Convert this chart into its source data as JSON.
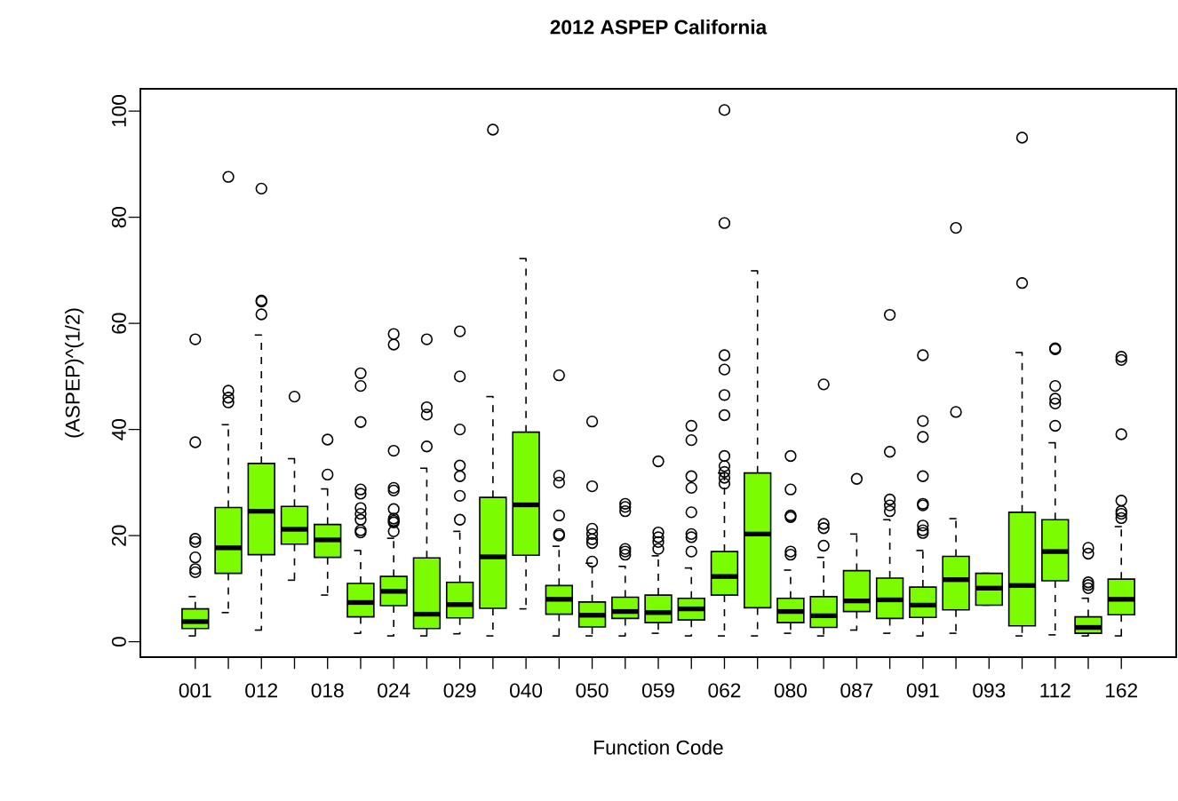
{
  "chart_data": {
    "type": "box",
    "title": "2012 ASPEP California",
    "xlabel": "Function Code",
    "ylabel": "(ASPEP)^(1/2)",
    "color": "#7cfc00",
    "grid": false,
    "categories": [
      "001",
      null,
      "012",
      null,
      "018",
      null,
      "024",
      null,
      "029",
      null,
      "040",
      null,
      "050",
      null,
      "059",
      null,
      "062",
      null,
      "080",
      null,
      "087",
      null,
      "091",
      null,
      "093",
      null,
      "112",
      null,
      "162"
    ],
    "ylim": [
      -2.9,
      104.2
    ],
    "yticks": [
      0,
      20,
      40,
      60,
      80,
      100
    ],
    "boxes": [
      {
        "low": 1.1,
        "q1": 2.5,
        "median": 3.8,
        "q3": 6.2,
        "high": 8.5,
        "outliers": [
          13.1,
          13.7,
          15.9,
          18.8,
          19.4,
          37.6,
          57.0
        ]
      },
      {
        "low": 5.5,
        "q1": 12.9,
        "median": 17.7,
        "q3": 25.3,
        "high": 40.9,
        "outliers": [
          45.1,
          46.0,
          47.3,
          87.6
        ]
      },
      {
        "low": 2.2,
        "q1": 16.4,
        "median": 24.6,
        "q3": 33.6,
        "high": 57.8,
        "outliers": [
          61.7,
          64.1,
          64.3,
          85.4
        ]
      },
      {
        "low": 11.6,
        "q1": 18.4,
        "median": 21.2,
        "q3": 25.5,
        "high": 34.5,
        "outliers": [
          46.2
        ]
      },
      {
        "low": 8.8,
        "q1": 15.9,
        "median": 19.2,
        "q3": 22.1,
        "high": 28.8,
        "outliers": [
          31.5,
          38.1
        ]
      },
      {
        "low": 1.6,
        "q1": 4.7,
        "median": 7.4,
        "q3": 11.0,
        "high": 17.2,
        "outliers": [
          20.6,
          21.0,
          23.0,
          24.1,
          25.2,
          27.9,
          28.7,
          41.4,
          48.2,
          50.6
        ]
      },
      {
        "low": 1.1,
        "q1": 6.8,
        "median": 9.5,
        "q3": 12.3,
        "high": 19.5,
        "outliers": [
          20.8,
          22.5,
          22.8,
          23.2,
          25.0,
          28.5,
          29.0,
          36.0,
          56.0,
          58.0
        ]
      },
      {
        "low": 1.1,
        "q1": 2.5,
        "median": 5.2,
        "q3": 15.8,
        "high": 32.7,
        "outliers": [
          36.8,
          42.8,
          44.2,
          57.0
        ]
      },
      {
        "low": 1.5,
        "q1": 4.5,
        "median": 7.0,
        "q3": 11.2,
        "high": 20.8,
        "outliers": [
          23.0,
          27.5,
          31.2,
          33.2,
          40.0,
          50.0,
          58.5
        ]
      },
      {
        "low": 1.1,
        "q1": 6.3,
        "median": 16.0,
        "q3": 27.2,
        "high": 46.2,
        "outliers": [
          96.5
        ]
      },
      {
        "low": 6.2,
        "q1": 16.3,
        "median": 25.8,
        "q3": 39.5,
        "high": 72.2
      },
      {
        "low": 1.1,
        "q1": 5.2,
        "median": 8.0,
        "q3": 10.6,
        "high": 18.0,
        "outliers": [
          20.0,
          20.3,
          23.8,
          30.0,
          31.3,
          50.2
        ]
      },
      {
        "low": 1.1,
        "q1": 2.8,
        "median": 5.0,
        "q3": 7.5,
        "high": 14.8,
        "outliers": [
          15.1,
          18.6,
          19.3,
          20.3,
          21.3,
          29.3,
          41.5
        ]
      },
      {
        "low": 1.1,
        "q1": 4.4,
        "median": 5.7,
        "q3": 8.4,
        "high": 14.2,
        "outliers": [
          16.4,
          17.0,
          17.5,
          24.6,
          25.4,
          26.0
        ]
      },
      {
        "low": 1.6,
        "q1": 3.6,
        "median": 5.5,
        "q3": 8.8,
        "high": 16.2,
        "outliers": [
          17.5,
          18.8,
          19.7,
          20.6,
          34.0
        ]
      },
      {
        "low": 1.1,
        "q1": 4.1,
        "median": 6.2,
        "q3": 8.2,
        "high": 13.9,
        "outliers": [
          17.0,
          19.7,
          20.3,
          24.4,
          29.0,
          31.2,
          38.0,
          40.7
        ]
      },
      {
        "low": 1.1,
        "q1": 8.8,
        "median": 12.3,
        "q3": 17.0,
        "high": 31.8,
        "outliers": [
          29.8,
          30.9,
          32.0,
          33.1,
          35.0,
          42.7,
          46.5,
          51.3,
          54.0,
          78.9,
          100.2
        ]
      },
      {
        "low": 1.1,
        "q1": 6.4,
        "median": 20.3,
        "q3": 31.8,
        "high": 69.9
      },
      {
        "low": 1.6,
        "q1": 3.6,
        "median": 5.7,
        "q3": 8.2,
        "high": 13.5,
        "outliers": [
          16.4,
          17.0,
          23.5,
          23.8,
          28.7,
          35.0
        ]
      },
      {
        "low": 1.1,
        "q1": 2.7,
        "median": 4.9,
        "q3": 8.5,
        "high": 15.9,
        "outliers": [
          18.1,
          21.4,
          22.2,
          48.5
        ]
      },
      {
        "low": 2.2,
        "q1": 5.7,
        "median": 7.7,
        "q3": 13.4,
        "high": 20.3,
        "outliers": [
          30.7
        ]
      },
      {
        "low": 1.6,
        "q1": 4.4,
        "median": 7.9,
        "q3": 12.0,
        "high": 23.0,
        "outliers": [
          24.6,
          25.7,
          26.8,
          35.8,
          61.6
        ]
      },
      {
        "low": 1.1,
        "q1": 4.6,
        "median": 6.9,
        "q3": 10.3,
        "high": 17.2,
        "outliers": [
          20.5,
          21.0,
          21.9,
          25.7,
          26.0,
          31.2,
          38.6,
          41.6,
          54.0
        ]
      },
      {
        "low": 1.6,
        "q1": 6.0,
        "median": 11.7,
        "q3": 16.1,
        "high": 23.2,
        "outliers": [
          43.3,
          78.0
        ]
      },
      {
        "low": 6.9,
        "q1": 6.9,
        "median": 10.1,
        "q3": 12.9,
        "high": 12.9
      },
      {
        "low": 1.1,
        "q1": 3.0,
        "median": 10.6,
        "q3": 24.4,
        "high": 54.5,
        "outliers": [
          67.6,
          95.0
        ]
      },
      {
        "low": 1.3,
        "q1": 11.5,
        "median": 17.0,
        "q3": 23.0,
        "high": 37.5,
        "outliers": [
          40.7,
          44.9,
          45.8,
          48.2,
          55.1,
          55.3
        ]
      },
      {
        "low": 1.1,
        "q1": 1.6,
        "median": 2.7,
        "q3": 4.7,
        "high": 8.2,
        "outliers": [
          10.1,
          10.7,
          11.2,
          16.6,
          17.7
        ]
      },
      {
        "low": 1.1,
        "q1": 5.1,
        "median": 8.0,
        "q3": 11.8,
        "high": 21.7,
        "outliers": [
          23.3,
          24.1,
          24.6,
          26.6,
          39.1,
          53.1,
          53.7
        ]
      }
    ]
  }
}
